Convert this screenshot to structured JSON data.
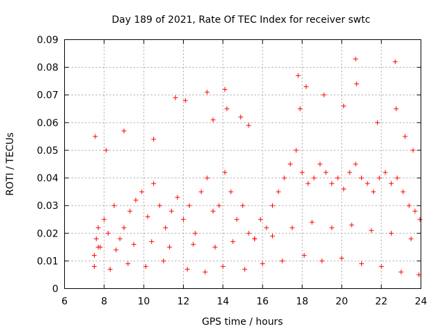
{
  "chart_data": {
    "type": "scatter",
    "title": "Day 189 of 2021, Rate Of TEC Index for receiver swtc",
    "xlabel": "GPS time / hours",
    "ylabel": "ROTI / TECUs",
    "xlim": [
      6,
      24
    ],
    "ylim": [
      0,
      0.09
    ],
    "xticks": [
      "6",
      "8",
      "10",
      "12",
      "14",
      "16",
      "18",
      "20",
      "22",
      "24"
    ],
    "yticks": [
      "0",
      "0.01",
      "0.02",
      "0.03",
      "0.04",
      "0.05",
      "0.06",
      "0.07",
      "0.08",
      "0.09"
    ],
    "grid": true,
    "marker": "+",
    "color": "#ff0000",
    "series": [
      {
        "name": "",
        "x": [
          7.5,
          7.6,
          7.7,
          7.8,
          8.0,
          8.2,
          8.5,
          8.8,
          9.0,
          9.3,
          9.6,
          9.9,
          10.2,
          10.5,
          10.8,
          11.1,
          11.4,
          11.7,
          12.0,
          12.3,
          12.6,
          12.9,
          13.2,
          13.5,
          13.8,
          14.1,
          14.4,
          14.7,
          15.0,
          15.3,
          15.6,
          15.9,
          16.2,
          16.5,
          16.8,
          17.1,
          17.4,
          17.7,
          18.0,
          18.3,
          18.6,
          18.9,
          19.2,
          19.5,
          19.8,
          20.1,
          20.4,
          20.7,
          21.0,
          21.3,
          21.6,
          21.9,
          22.2,
          22.5,
          22.8,
          23.1,
          23.4,
          23.7,
          23.95,
          7.55,
          8.1,
          9.0,
          10.5,
          11.6,
          12.1,
          13.2,
          13.5,
          14.1,
          14.2,
          14.9,
          15.3,
          17.8,
          17.9,
          18.2,
          19.1,
          20.1,
          20.7,
          20.75,
          21.8,
          22.7,
          22.75,
          23.2,
          23.6,
          7.5,
          8.3,
          9.2,
          10.1,
          11.0,
          12.2,
          13.1,
          14.0,
          15.1,
          16.0,
          17.0,
          18.1,
          19.0,
          20.0,
          21.0,
          22.0,
          23.0,
          23.9,
          7.7,
          8.6,
          9.5,
          10.4,
          11.3,
          12.5,
          13.6,
          14.5,
          15.6,
          16.5,
          17.5,
          18.5,
          19.5,
          20.5,
          21.5,
          22.5,
          23.5
        ],
        "y": [
          0.012,
          0.018,
          0.022,
          0.015,
          0.025,
          0.02,
          0.03,
          0.018,
          0.022,
          0.028,
          0.032,
          0.035,
          0.026,
          0.038,
          0.03,
          0.022,
          0.028,
          0.033,
          0.025,
          0.03,
          0.02,
          0.035,
          0.04,
          0.028,
          0.03,
          0.042,
          0.035,
          0.025,
          0.03,
          0.02,
          0.018,
          0.025,
          0.022,
          0.03,
          0.035,
          0.04,
          0.045,
          0.05,
          0.042,
          0.038,
          0.04,
          0.045,
          0.042,
          0.038,
          0.04,
          0.036,
          0.042,
          0.045,
          0.04,
          0.038,
          0.035,
          0.04,
          0.042,
          0.038,
          0.04,
          0.035,
          0.03,
          0.028,
          0.025,
          0.055,
          0.05,
          0.057,
          0.054,
          0.069,
          0.068,
          0.071,
          0.061,
          0.072,
          0.065,
          0.062,
          0.059,
          0.077,
          0.065,
          0.073,
          0.07,
          0.066,
          0.083,
          0.074,
          0.06,
          0.082,
          0.065,
          0.055,
          0.05,
          0.008,
          0.007,
          0.009,
          0.008,
          0.01,
          0.007,
          0.006,
          0.008,
          0.007,
          0.009,
          0.01,
          0.012,
          0.01,
          0.011,
          0.009,
          0.008,
          0.006,
          0.005,
          0.015,
          0.014,
          0.016,
          0.017,
          0.015,
          0.016,
          0.015,
          0.017,
          0.018,
          0.019,
          0.022,
          0.024,
          0.022,
          0.023,
          0.021,
          0.02,
          0.018
        ]
      }
    ]
  }
}
